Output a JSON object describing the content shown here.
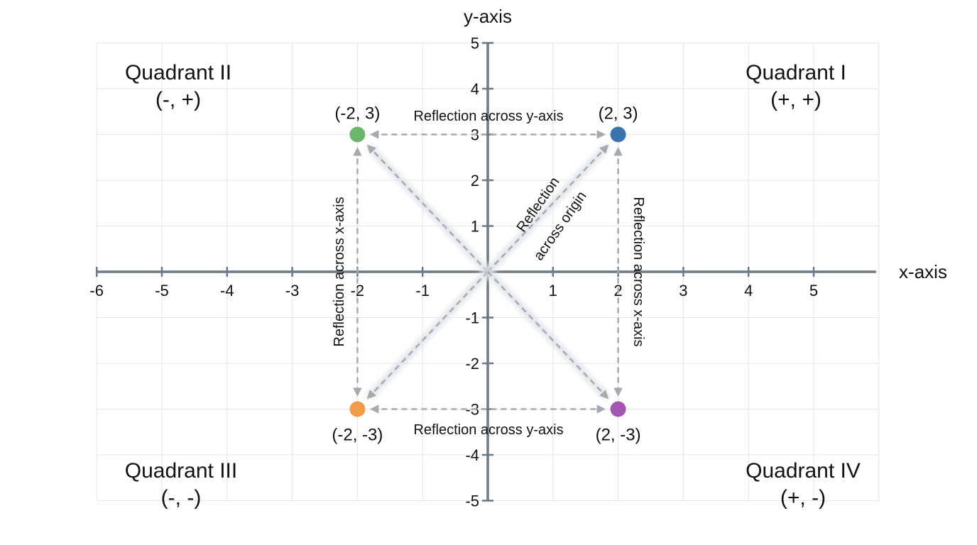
{
  "chart_data": {
    "type": "scatter",
    "xlabel": "x-axis",
    "ylabel": "y-axis",
    "xlim": [
      -6,
      6
    ],
    "ylim": [
      -5,
      5
    ],
    "x_ticks": [
      -6,
      -5,
      -4,
      -3,
      -2,
      -1,
      1,
      2,
      3,
      4,
      5
    ],
    "y_ticks": [
      5,
      4,
      3,
      2,
      1,
      -1,
      -2,
      -3,
      -4,
      -5
    ],
    "grid": true,
    "points": [
      {
        "x": -2,
        "y": 3,
        "label": "(-2, 3)",
        "color": "#6cb86a"
      },
      {
        "x": 2,
        "y": 3,
        "label": "(2, 3)",
        "color": "#3a74ad"
      },
      {
        "x": -2,
        "y": -3,
        "label": "(-2, -3)",
        "color": "#f09c4a"
      },
      {
        "x": 2,
        "y": -3,
        "label": "(2, -3)",
        "color": "#a457b0"
      }
    ],
    "quadrants": [
      {
        "name": "Quadrant I",
        "signs": "(+, +)"
      },
      {
        "name": "Quadrant II",
        "signs": "(-, +)"
      },
      {
        "name": "Quadrant III",
        "signs": "(-, -)"
      },
      {
        "name": "Quadrant IV",
        "signs": "(+, -)"
      }
    ],
    "annotations": {
      "top": "Reflection across y-axis",
      "bottom": "Reflection across y-axis",
      "left": "Reflection across x-axis",
      "right": "Reflection across x-axis",
      "origin_line1": "Reflection",
      "origin_line2": "across origin"
    },
    "colors": {
      "axis": "#6b7885",
      "grid": "#e2e5e8",
      "arrow": "#a4aab0"
    }
  }
}
